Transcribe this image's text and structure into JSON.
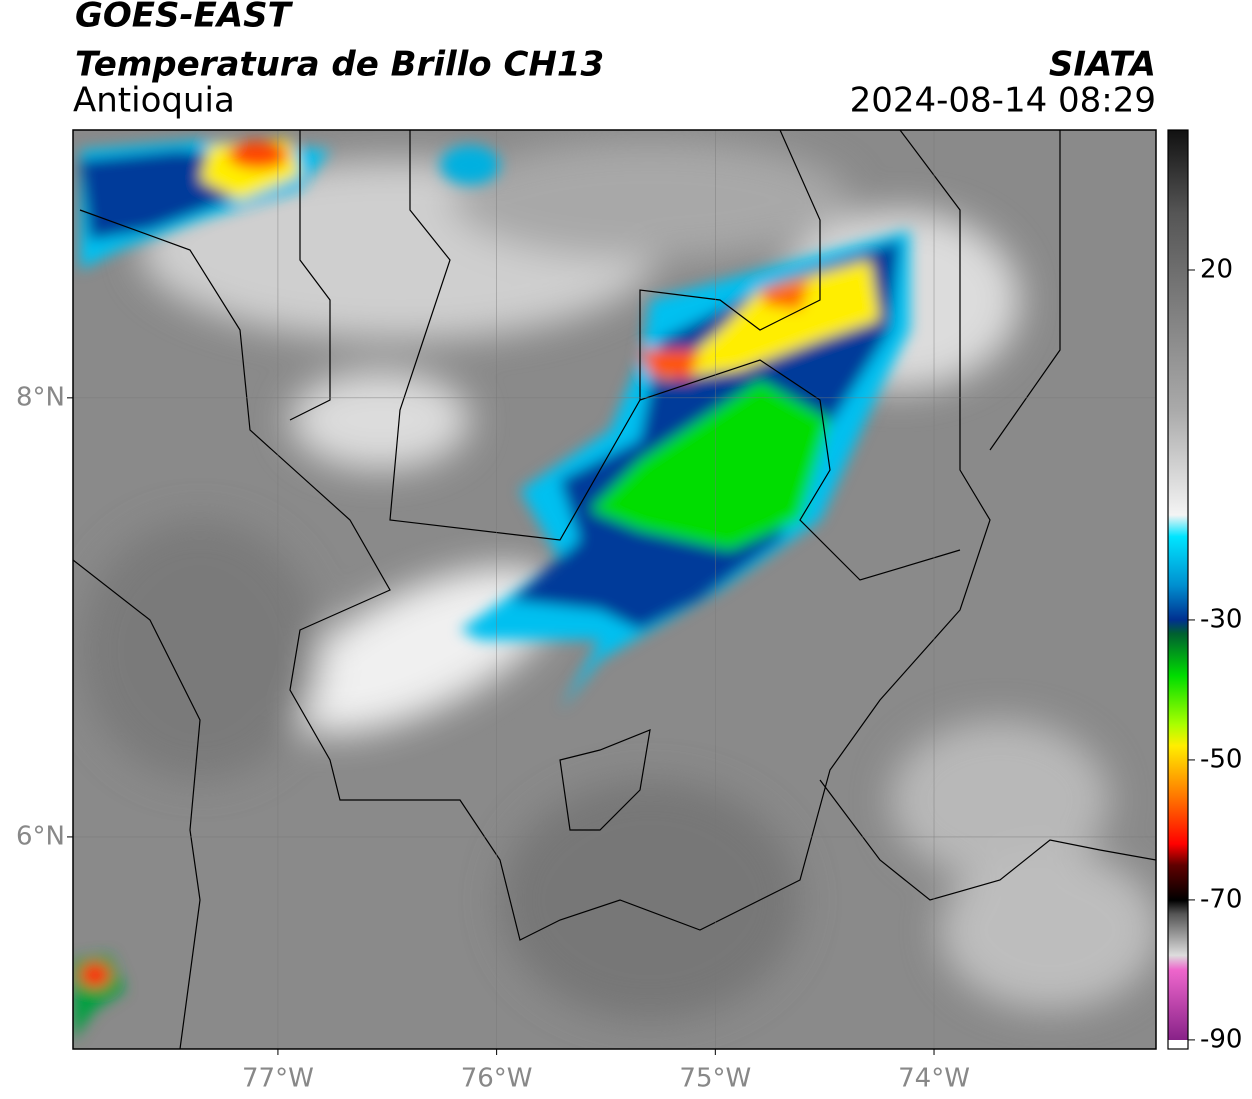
{
  "header": {
    "title": "GOES-EAST",
    "subtitle": "Temperatura de Brillo CH13",
    "region": "Antioquia",
    "source": "SIATA",
    "datetime": "2024-08-14 08:29"
  },
  "map": {
    "xlim": [
      -77.937,
      -72.985
    ],
    "ylim": [
      5.034,
      9.22
    ],
    "xticks": [
      {
        "value": -77,
        "label": "77°W"
      },
      {
        "value": -76,
        "label": "76°W"
      },
      {
        "value": -75,
        "label": "75°W"
      },
      {
        "value": -74,
        "label": "74°W"
      }
    ],
    "yticks": [
      {
        "value": 6,
        "label": "6°N"
      },
      {
        "value": 8,
        "label": "8°N"
      }
    ]
  },
  "colorbar": {
    "clim": [
      -91.3,
      40
    ],
    "ticks": [
      -90,
      -70,
      -50,
      -30,
      20
    ]
  }
}
